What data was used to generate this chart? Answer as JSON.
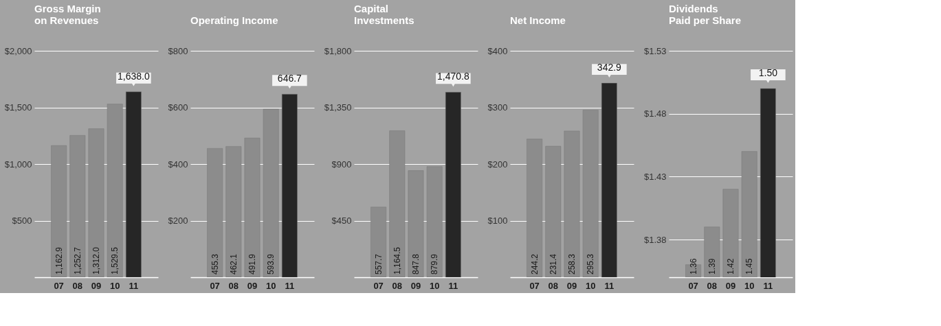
{
  "chart_data": [
    {
      "type": "bar",
      "title": "Gross Margin\non Revenues",
      "categories": [
        "07",
        "08",
        "09",
        "10",
        "11"
      ],
      "values": [
        1162.9,
        1252.7,
        1312.0,
        1529.5,
        1638.0
      ],
      "value_labels": [
        "1,162.9",
        "1,252.7",
        "1,312.0",
        "1,529.5",
        "1,638.0"
      ],
      "colors": [
        "#8c8c8c",
        "#8c8c8c",
        "#8c8c8c",
        "#8c8c8c",
        "#262626"
      ],
      "ylim": [
        0,
        2000
      ],
      "yticks": [
        {
          "value": 500,
          "label": "$500"
        },
        {
          "value": 1000,
          "label": "$1,000"
        },
        {
          "value": 1500,
          "label": "$1,500"
        },
        {
          "value": 2000,
          "label": "$2,000"
        }
      ],
      "grid": "y"
    },
    {
      "type": "bar",
      "title": "Operating Income",
      "categories": [
        "07",
        "08",
        "09",
        "10",
        "11"
      ],
      "values": [
        455.3,
        462.1,
        491.9,
        593.9,
        646.7
      ],
      "value_labels": [
        "455.3",
        "462.1",
        "491.9",
        "593.9",
        "646.7"
      ],
      "colors": [
        "#8c8c8c",
        "#8c8c8c",
        "#8c8c8c",
        "#8c8c8c",
        "#262626"
      ],
      "ylim": [
        0,
        800
      ],
      "yticks": [
        {
          "value": 200,
          "label": "$200"
        },
        {
          "value": 400,
          "label": "$400"
        },
        {
          "value": 600,
          "label": "$600"
        },
        {
          "value": 800,
          "label": "$800"
        }
      ],
      "grid": "y"
    },
    {
      "type": "bar",
      "title": "Capital\nInvestments",
      "categories": [
        "07",
        "08",
        "09",
        "10",
        "11"
      ],
      "values": [
        557.7,
        1164.5,
        847.8,
        879.9,
        1470.8
      ],
      "value_labels": [
        "557.7",
        "1,164.5",
        "847.8",
        "879.9",
        "1,470.8"
      ],
      "colors": [
        "#8c8c8c",
        "#8c8c8c",
        "#8c8c8c",
        "#8c8c8c",
        "#262626"
      ],
      "ylim": [
        0,
        1800
      ],
      "yticks": [
        {
          "value": 450,
          "label": "$450"
        },
        {
          "value": 900,
          "label": "$900"
        },
        {
          "value": 1350,
          "label": "$1,350"
        },
        {
          "value": 1800,
          "label": "$1,800"
        }
      ],
      "grid": "y"
    },
    {
      "type": "bar",
      "title": "Net Income",
      "categories": [
        "07",
        "08",
        "09",
        "10",
        "11"
      ],
      "values": [
        244.2,
        231.4,
        258.3,
        295.3,
        342.9
      ],
      "value_labels": [
        "244.2",
        "231.4",
        "258.3",
        "295.3",
        "342.9"
      ],
      "colors": [
        "#8c8c8c",
        "#8c8c8c",
        "#8c8c8c",
        "#8c8c8c",
        "#262626"
      ],
      "ylim": [
        0,
        400
      ],
      "yticks": [
        {
          "value": 100,
          "label": "$100"
        },
        {
          "value": 200,
          "label": "$200"
        },
        {
          "value": 300,
          "label": "$300"
        },
        {
          "value": 400,
          "label": "$400"
        }
      ],
      "grid": "y"
    },
    {
      "type": "bar",
      "title": "Dividends\nPaid per Share",
      "categories": [
        "07",
        "08",
        "09",
        "10",
        "11"
      ],
      "values": [
        1.36,
        1.39,
        1.42,
        1.45,
        1.5
      ],
      "value_labels": [
        "1.36",
        "1.39",
        "1.42",
        "1.45",
        "1.50"
      ],
      "colors": [
        "#8c8c8c",
        "#8c8c8c",
        "#8c8c8c",
        "#8c8c8c",
        "#262626"
      ],
      "ylim": [
        1.35,
        1.53
      ],
      "yticks": [
        {
          "value": 1.38,
          "label": "$1.38"
        },
        {
          "value": 1.43,
          "label": "$1.43"
        },
        {
          "value": 1.48,
          "label": "$1.48"
        },
        {
          "value": 1.53,
          "label": "$1.53"
        }
      ],
      "grid": "y"
    }
  ]
}
